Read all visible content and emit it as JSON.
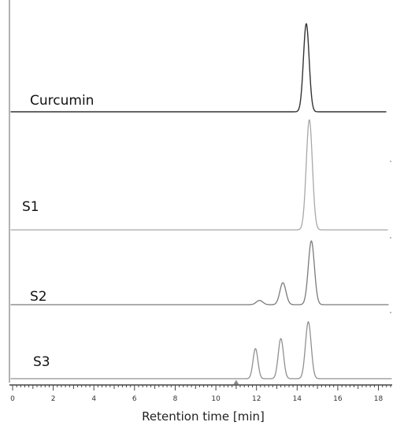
{
  "colors": {
    "background": "#ffffff",
    "axis": "#444444",
    "marker": "#888888"
  },
  "chart_data": {
    "type": "line",
    "title": "",
    "xlabel": "Retention time [min]",
    "ylabel": "",
    "xlim": [
      0,
      18.6
    ],
    "xticks": [
      0,
      2,
      4,
      6,
      8,
      10,
      12,
      14,
      16,
      18
    ],
    "minor_tick_step": 0.2,
    "grid": false,
    "legend": "none",
    "marker_at": 11.0,
    "series": [
      {
        "name": "Curcumin",
        "color": "#333333",
        "stroke_width": 1.4,
        "peaks": [
          {
            "rt": 14.45,
            "height": 1.0,
            "width": 0.14
          }
        ]
      },
      {
        "name": "S1",
        "color": "#a8a8a8",
        "stroke_width": 1.3,
        "peaks": [
          {
            "rt": 14.6,
            "height": 1.0,
            "width": 0.15
          }
        ]
      },
      {
        "name": "S2",
        "color": "#7a7a7a",
        "stroke_width": 1.3,
        "peaks": [
          {
            "rt": 12.15,
            "height": 0.06,
            "width": 0.16
          },
          {
            "rt": 13.3,
            "height": 0.31,
            "width": 0.15
          },
          {
            "rt": 14.7,
            "height": 0.9,
            "width": 0.15
          }
        ]
      },
      {
        "name": "S3",
        "color": "#909090",
        "stroke_width": 1.3,
        "peaks": [
          {
            "rt": 11.95,
            "height": 0.45,
            "width": 0.12
          },
          {
            "rt": 13.2,
            "height": 0.6,
            "width": 0.13
          },
          {
            "rt": 14.55,
            "height": 0.85,
            "width": 0.14
          }
        ]
      }
    ]
  }
}
